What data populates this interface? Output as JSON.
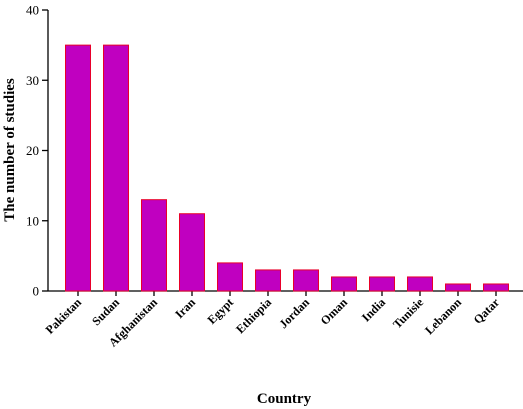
{
  "chart_data": {
    "type": "bar",
    "title": "",
    "xlabel": "Country",
    "ylabel": "The number of studies",
    "categories": [
      "Pakistan",
      "Sudan",
      "Afghanistan",
      "Iran",
      "Egypt",
      "Ethiopia",
      "Jordan",
      "Oman",
      "India",
      "Tunisie",
      "Lebanon",
      "Qatar"
    ],
    "values": [
      35,
      35,
      13,
      11,
      4,
      3,
      3,
      2,
      2,
      2,
      1,
      1
    ],
    "ylim": [
      0,
      40
    ],
    "yticks": [
      0,
      10,
      20,
      30,
      40
    ],
    "grid": false,
    "colors": {
      "bar_fill": "#c000c0",
      "bar_edge": "#e8002a"
    }
  }
}
